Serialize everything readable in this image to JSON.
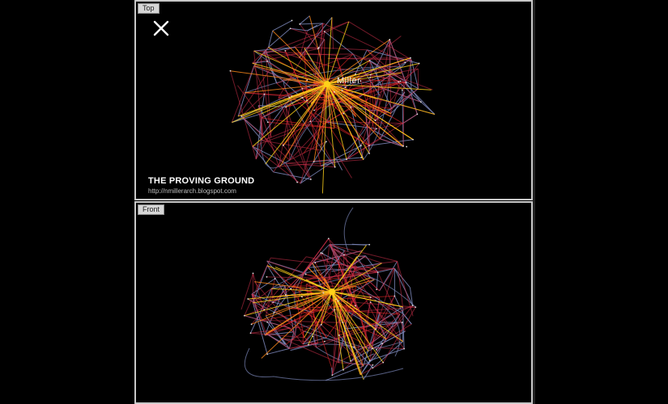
{
  "viewports": {
    "top": {
      "label": "Top"
    },
    "front": {
      "label": "Front"
    }
  },
  "watermark": {
    "title": "THE PROVING GROUND",
    "url": "http://nmillerarch.blogspot.com"
  },
  "hub_label": "Miller",
  "colors": {
    "background": "#000000",
    "frame": "#c8c8c8",
    "edge_outer": "#7b86b8",
    "edge_mid": "#d0304a",
    "edge_inner": "#ff2a2a",
    "edge_hub": "#ffd21a",
    "node_label": "#dcdcdc"
  },
  "icons": {
    "close": "close-x-icon"
  }
}
